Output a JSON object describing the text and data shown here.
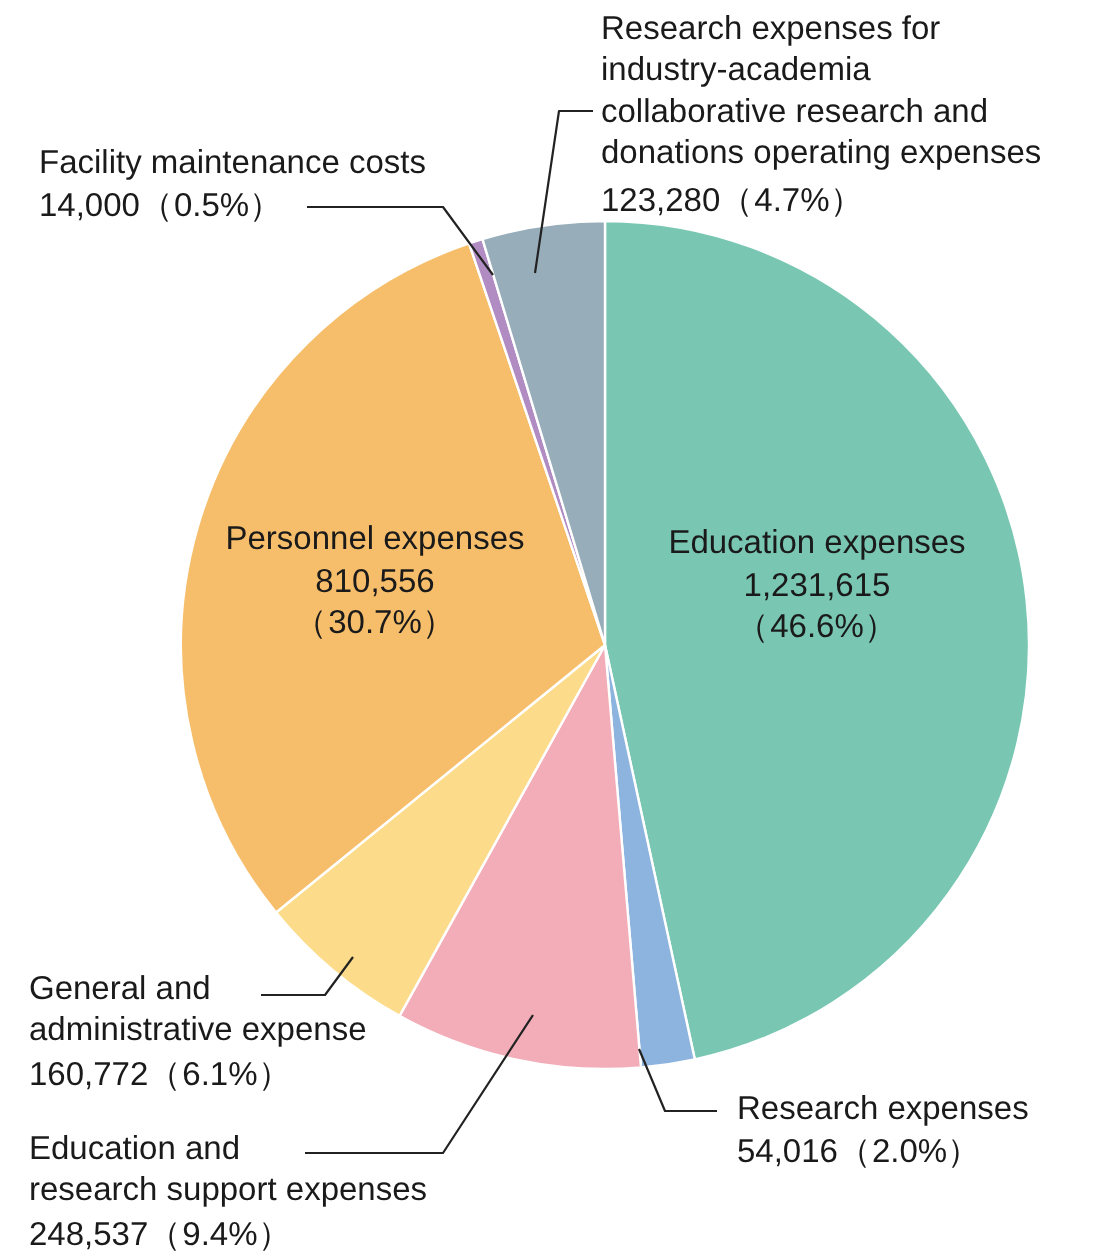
{
  "chart_data": {
    "type": "pie",
    "categories": [
      "Education expenses",
      "Research expenses",
      "Education and\nresearch support expenses",
      "General and\nadministrative expense",
      "Personnel expenses",
      "Facility maintenance costs",
      "Research expenses for\nindustry-academia\ncollaborative research and\ndonations operating expenses"
    ],
    "values": [
      1231615,
      54016,
      248537,
      160772,
      810556,
      14000,
      123280
    ],
    "colors": [
      "#79c7b2",
      "#8db3df",
      "#f2adb8",
      "#fcdc8a",
      "#f6be6a",
      "#b18cc2",
      "#97adb9"
    ],
    "value_labels": [
      "1,231,615\n（46.6%）",
      "54,016（2.0%）",
      "248,537（9.4%）",
      "160,772（6.1%）",
      "810,556\n（30.7%）",
      "14,000（0.5%）",
      "123,280（4.7%）"
    ]
  }
}
